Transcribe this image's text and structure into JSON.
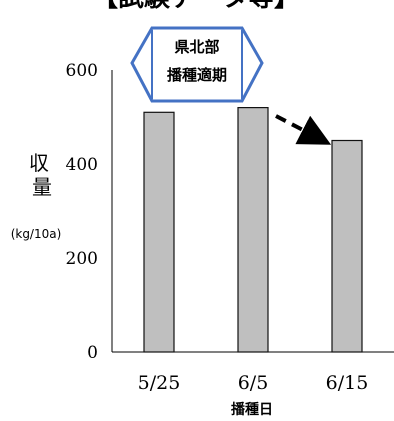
{
  "chart_data": {
    "type": "bar",
    "title": "【試験データ等】",
    "categories": [
      "5/25",
      "6/5",
      "6/15"
    ],
    "values": [
      510,
      520,
      450
    ],
    "ylim": [
      0,
      600
    ],
    "yticks": [
      0,
      200,
      400,
      600
    ],
    "ylabel": "収量",
    "yunit": "(kg/10a)",
    "xlabel": "播種日",
    "bar_color": "#bfbfbf",
    "bar_edge": "#111111",
    "grid": false
  },
  "annotation": {
    "line1": "県北部",
    "line2": "播種適期",
    "fill": "#ffffff",
    "edge": "#4472c4"
  }
}
